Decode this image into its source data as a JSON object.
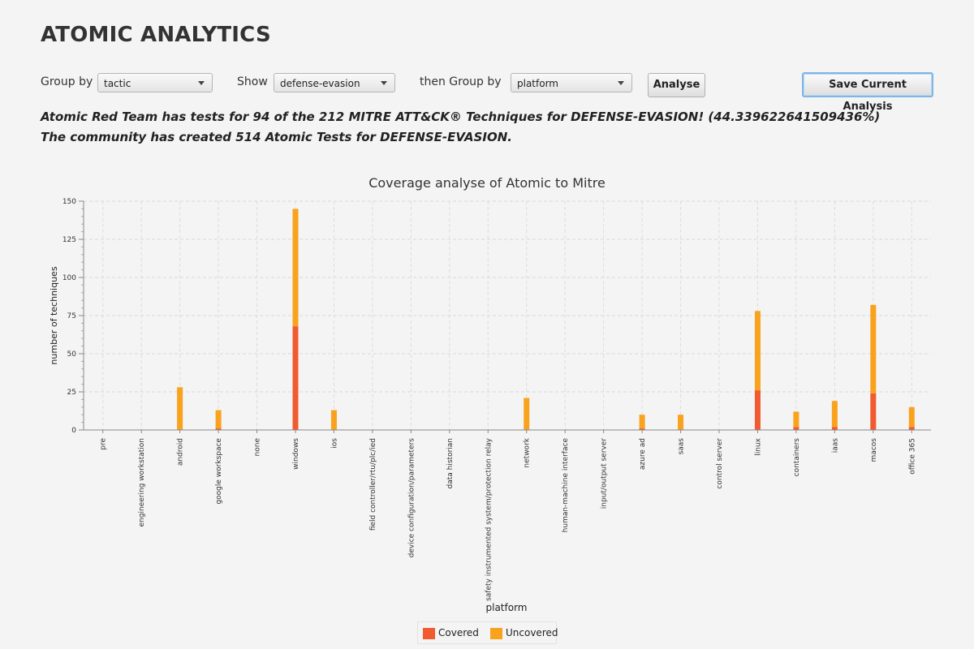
{
  "app": {
    "title": "ATOMIC ANALYTICS"
  },
  "controls": {
    "group_by_label": "Group by",
    "group_by_value": "tactic",
    "show_label": "Show",
    "show_value": "defense-evasion",
    "then_group_by_label": "then Group by",
    "then_group_by_value": "platform",
    "analyse_button": "Analyse",
    "save_button": "Save Current Analysis"
  },
  "summary": {
    "line1": "Atomic Red Team has tests for 94 of the 212 MITRE ATT&CK® Techniques for DEFENSE-EVASION! (44.339622641509436%)",
    "line2": "The community has created 514 Atomic Tests for DEFENSE-EVASION."
  },
  "chart_data": {
    "type": "bar",
    "stacked": true,
    "title": "Coverage analyse of Atomic to Mitre",
    "xlabel": "platform",
    "ylabel": "number of techniques",
    "ylim": [
      0,
      150
    ],
    "yticks": [
      0,
      25,
      50,
      75,
      100,
      125,
      150
    ],
    "grid": true,
    "legend_position": "bottom-center",
    "categories": [
      "pre",
      "engineering workstation",
      "android",
      "google workspace",
      "none",
      "windows",
      "ios",
      "field controller/rtu/plc/ied",
      "device configuration/parameters",
      "data historian",
      "safety instrumented system/protection relay",
      "network",
      "human-machine interface",
      "input/output server",
      "azure ad",
      "saas",
      "control server",
      "linux",
      "containers",
      "iaas",
      "macos",
      "office 365"
    ],
    "series": [
      {
        "name": "Covered",
        "color": "#f05b2f",
        "values": [
          0,
          0,
          0,
          1,
          0,
          68,
          0,
          0,
          0,
          0,
          0,
          0,
          0,
          0,
          1,
          0,
          0,
          26,
          2,
          2,
          24,
          2
        ]
      },
      {
        "name": "Uncovered",
        "color": "#f9a21e",
        "values": [
          0,
          0,
          28,
          12,
          0,
          77,
          13,
          0,
          0,
          0,
          0,
          21,
          0,
          0,
          9,
          10,
          0,
          52,
          10,
          17,
          58,
          13
        ]
      }
    ]
  }
}
